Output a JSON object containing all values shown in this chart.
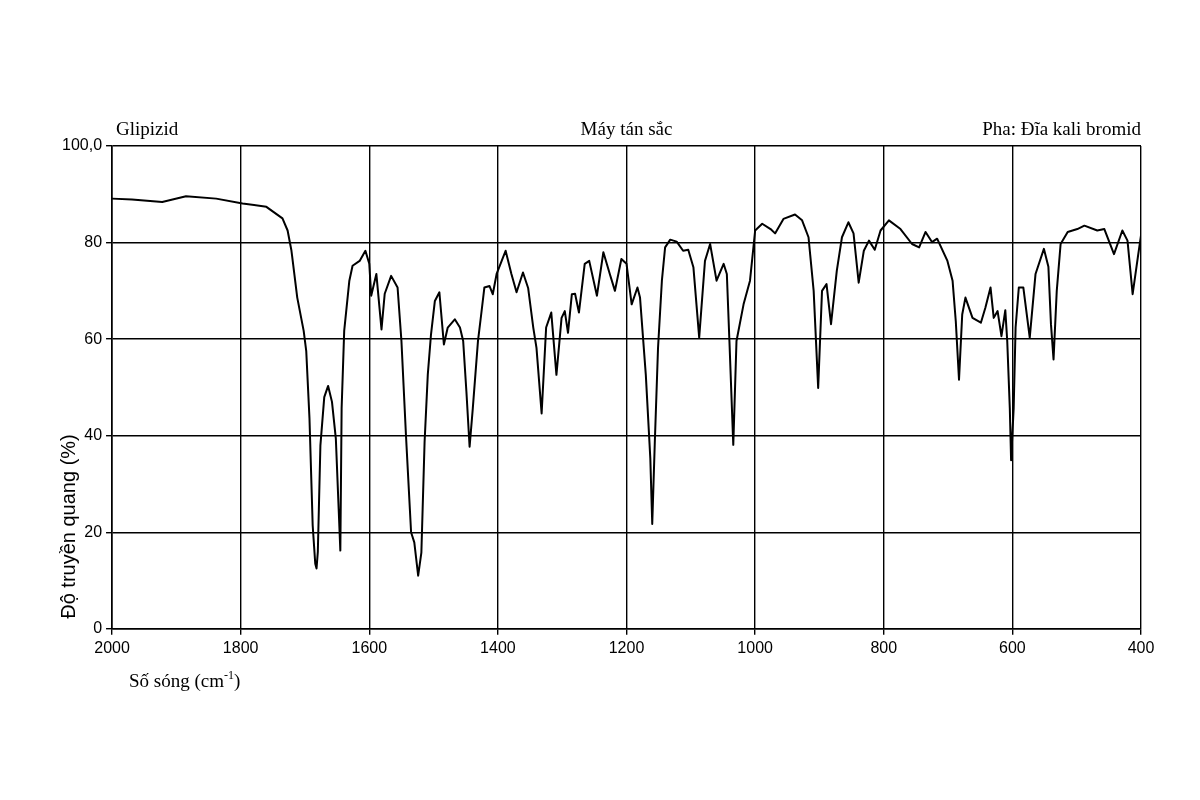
{
  "chart_data": {
    "type": "line",
    "title": "Glipizid",
    "annotations": [
      "Máy tán sắc",
      "Pha: Đĩa kali bromid"
    ],
    "xlabel": "Số sóng (cm$^{-1}$)",
    "ylabel": "Độ truyền quang (%)",
    "xlim": [
      2000,
      400
    ],
    "xticks": [
      2000,
      1800,
      1600,
      1400,
      1200,
      1000,
      800,
      600,
      400
    ],
    "ylim": [
      0,
      100
    ],
    "yticks": [
      0,
      20,
      40,
      60,
      80,
      {
        "value": 100,
        "label": "100,0"
      }
    ],
    "grid": true,
    "line_style": "solid",
    "series": [
      {
        "color": "#000000",
        "x": [
          2000,
          1969,
          1922,
          1885,
          1838,
          1797,
          1760,
          1735,
          1727,
          1721,
          1712,
          1702,
          1698,
          1693,
          1688,
          1684,
          1682,
          1680,
          1676,
          1670,
          1664,
          1658,
          1652,
          1645,
          1643,
          1639,
          1631,
          1626,
          1615,
          1606,
          1600,
          1597,
          1589,
          1581,
          1576,
          1566,
          1556,
          1550,
          1543,
          1535,
          1530,
          1524,
          1519,
          1514,
          1509,
          1504,
          1498,
          1491,
          1484,
          1478,
          1467,
          1459,
          1454,
          1449,
          1444,
          1439,
          1431,
          1426,
          1421,
          1413,
          1408,
          1402,
          1388,
          1379,
          1371,
          1361,
          1353,
          1345,
          1340,
          1332,
          1325,
          1317,
          1309,
          1301,
          1296,
          1291,
          1285,
          1280,
          1274,
          1265,
          1258,
          1246,
          1236,
          1226,
          1218,
          1208,
          1200,
          1192,
          1183,
          1179,
          1170,
          1163,
          1160,
          1156,
          1151,
          1145,
          1140,
          1132,
          1122,
          1112,
          1104,
          1096,
          1087,
          1078,
          1070,
          1060,
          1049,
          1044,
          1040,
          1034,
          1029,
          1018,
          1008,
          1000,
          989,
          976,
          969,
          956,
          938,
          927,
          917,
          909,
          902,
          896,
          889,
          882,
          873,
          865,
          855,
          847,
          839,
          831,
          823,
          814,
          805,
          792,
          774,
          756,
          745,
          735,
          725,
          717,
          701,
          693,
          688,
          683,
          678,
          673,
          662,
          649,
          642,
          634,
          629,
          623,
          617,
          611,
          608,
          604,
          602,
          598,
          595,
          590,
          583,
          573,
          564,
          551,
          544,
          540,
          536,
          531,
          525,
          514,
          499,
          488,
          468,
          457,
          442,
          429,
          421,
          413,
          405,
          400
        ],
        "values": [
          89.1,
          88.9,
          88.4,
          89.6,
          89.1,
          88.1,
          87.4,
          85,
          82.5,
          78.3,
          68.6,
          61.7,
          57.5,
          43.6,
          21.4,
          13.5,
          12.5,
          16,
          38,
          48,
          50.3,
          47,
          39.4,
          16.2,
          45.7,
          61.7,
          72.1,
          75.2,
          76.2,
          78.3,
          75.6,
          69,
          73.5,
          62,
          69.4,
          73.1,
          70.7,
          59.6,
          40.2,
          20,
          17.9,
          11,
          15.8,
          38.7,
          52.7,
          61,
          67.9,
          69.7,
          58.9,
          62.4,
          64.1,
          62.4,
          59.6,
          49.2,
          37.7,
          45.7,
          59.6,
          65.1,
          70.7,
          71,
          69.3,
          73.5,
          78.3,
          73.5,
          69.7,
          73.8,
          70.6,
          62.4,
          58.2,
          44.6,
          62.4,
          65.5,
          52.6,
          64.4,
          65.8,
          61.3,
          69.3,
          69.4,
          65.5,
          75.6,
          76.2,
          69,
          78,
          73.5,
          70,
          76.6,
          75.6,
          67.2,
          70.7,
          68.6,
          52.6,
          35.3,
          21.7,
          38.7,
          58.2,
          72.1,
          79,
          80.6,
          80.2,
          78.3,
          78.5,
          74.9,
          60.3,
          76.2,
          79.7,
          72.1,
          75.6,
          73.5,
          59.6,
          38.1,
          59.6,
          67.2,
          72.1,
          82.5,
          83.9,
          82.8,
          81.9,
          84.9,
          85.8,
          84.6,
          81.1,
          70,
          49.9,
          70,
          71.4,
          63.1,
          74.2,
          81.1,
          84.2,
          81.9,
          71.7,
          78.3,
          80.4,
          78.5,
          82.5,
          84.6,
          82.8,
          79.7,
          79,
          82.2,
          80.1,
          80.8,
          76.2,
          72.1,
          63.7,
          51.6,
          65.1,
          68.6,
          64.4,
          63.4,
          66.5,
          70.7,
          64.4,
          65.8,
          60.6,
          66,
          59.6,
          45.7,
          34.9,
          45.7,
          62.4,
          70.7,
          70.7,
          60.3,
          73.5,
          78.7,
          75,
          63.1,
          55.8,
          70,
          79.7,
          82.2,
          82.8,
          83.5,
          82.5,
          82.8,
          77.6,
          82.5,
          80.4,
          69.3,
          76.9,
          81.5
        ]
      }
    ]
  }
}
